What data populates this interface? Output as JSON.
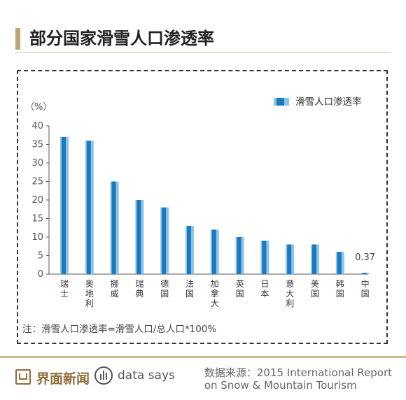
{
  "title": "部分国家滑雪人口渗透率",
  "chart_data": {
    "type": "bar",
    "categories": [
      "瑞士",
      "奥地利",
      "挪威",
      "瑞典",
      "德国",
      "法国",
      "加拿大",
      "英国",
      "日本",
      "意大利",
      "美国",
      "韩国",
      "中国"
    ],
    "values": [
      37,
      36,
      25,
      20,
      18,
      13,
      12,
      10,
      9,
      8,
      8,
      6,
      0.37
    ],
    "series_name": "滑雪人口渗透率",
    "ylabel": "（%）",
    "ylim": [
      0,
      40
    ],
    "yticks": [
      "0",
      "5",
      "10",
      "15",
      "20",
      "25",
      "30",
      "35",
      "40"
    ],
    "annotation": "0.37",
    "legend_position": "top-right",
    "grid": false,
    "colors": {
      "bar_light": "#8cc4ea",
      "bar_dark": "#1f78b8"
    }
  },
  "note": "注：滑雪人口渗透率=滑雪人口/总人口*100%",
  "footer": {
    "brand": "界面新闻",
    "datasays": "data says",
    "source": "数据来源：2015 International Report\non Snow & Mountain Tourism"
  }
}
